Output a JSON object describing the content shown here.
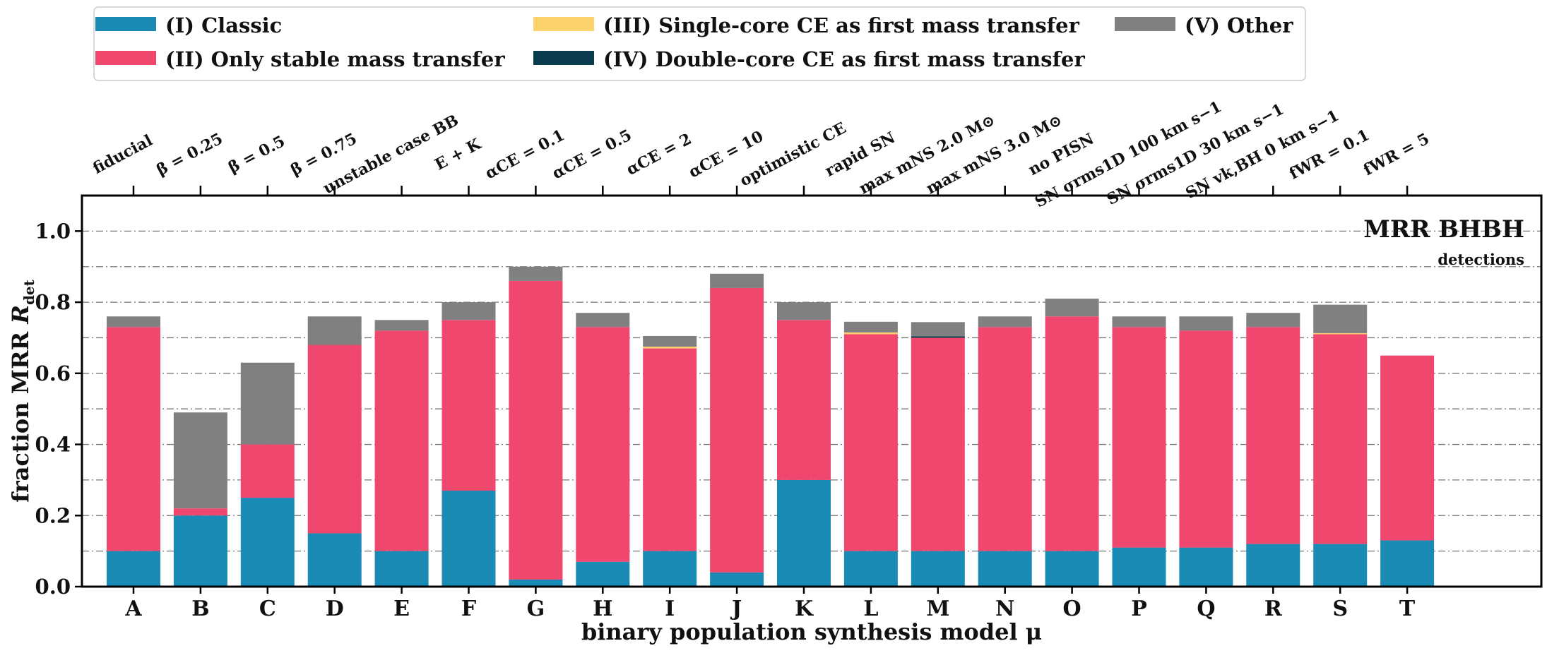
{
  "chart_data": {
    "type": "bar",
    "stacked": true,
    "title": "",
    "annotation": "MRR BHBH",
    "annotation_sub": "detections",
    "xlabel": "binary population synthesis model μ",
    "ylabel": "fraction MRR R_det",
    "ylabel_main": "fraction MRR ",
    "ylabel_symbol": "R",
    "ylabel_sub": "det",
    "ylim": [
      0,
      1.1
    ],
    "yticks": [
      "0.0",
      "0.2",
      "0.4",
      "0.6",
      "0.8",
      "1.0"
    ],
    "grid": "horizontal dash-dot lines every 0.1",
    "legend_position": "top, above plot",
    "categories": [
      "A",
      "B",
      "C",
      "D",
      "E",
      "F",
      "G",
      "H",
      "I",
      "J",
      "K",
      "L",
      "M",
      "N",
      "O",
      "P",
      "Q",
      "R",
      "S",
      "T"
    ],
    "top_labels": [
      "fiducial",
      "β = 0.25",
      "β = 0.5",
      "β = 0.75",
      "unstable case BB",
      "E + K",
      "αCE = 0.1",
      "αCE = 0.5",
      "αCE = 2",
      "αCE = 10",
      "optimistic CE",
      "rapid SN",
      "max mNS 2.0 M⊙",
      "max mNS 3.0 M⊙",
      "no PISN",
      "SN σrms1D 100 km s−1",
      "SN σrms1D 30 km s−1",
      "SN vk,BH 0 km s−1",
      "fWR = 0.1",
      "fWR = 5"
    ],
    "series": [
      {
        "name": "(I) Classic",
        "color": "#1a8bb5",
        "values": [
          0.1,
          0.2,
          0.25,
          0.15,
          0.1,
          0.27,
          0.02,
          0.07,
          0.1,
          0.04,
          0.3,
          0.1,
          0.1,
          0.1,
          0.1,
          0.11,
          0.11,
          0.12,
          0.12,
          0.13
        ]
      },
      {
        "name": "(II) Only stable mass transfer",
        "color": "#f0476f",
        "values": [
          0.63,
          0.02,
          0.15,
          0.53,
          0.62,
          0.48,
          0.84,
          0.66,
          0.57,
          0.8,
          0.45,
          0.61,
          0.6,
          0.63,
          0.66,
          0.62,
          0.61,
          0.61,
          0.59,
          0.52
        ]
      },
      {
        "name": "(III) Single-core CE as first mass transfer",
        "color": "#fbd26b",
        "values": [
          0,
          0,
          0,
          0,
          0,
          0,
          0,
          0,
          0.005,
          0,
          0,
          0.005,
          0,
          0,
          0,
          0,
          0,
          0,
          0.003,
          0
        ]
      },
      {
        "name": "(IV) Double-core CE as first mass transfer",
        "color": "#0b3c4d",
        "values": [
          0,
          0,
          0,
          0,
          0,
          0,
          0,
          0,
          0,
          0,
          0,
          0,
          0.004,
          0,
          0,
          0,
          0,
          0,
          0,
          0
        ]
      },
      {
        "name": "(V) Other",
        "color": "#808080",
        "values": [
          0.03,
          0.27,
          0.23,
          0.08,
          0.03,
          0.05,
          0.04,
          0.04,
          0.03,
          0.04,
          0.05,
          0.03,
          0.04,
          0.03,
          0.05,
          0.03,
          0.04,
          0.04,
          0.08,
          0.0
        ]
      }
    ]
  }
}
